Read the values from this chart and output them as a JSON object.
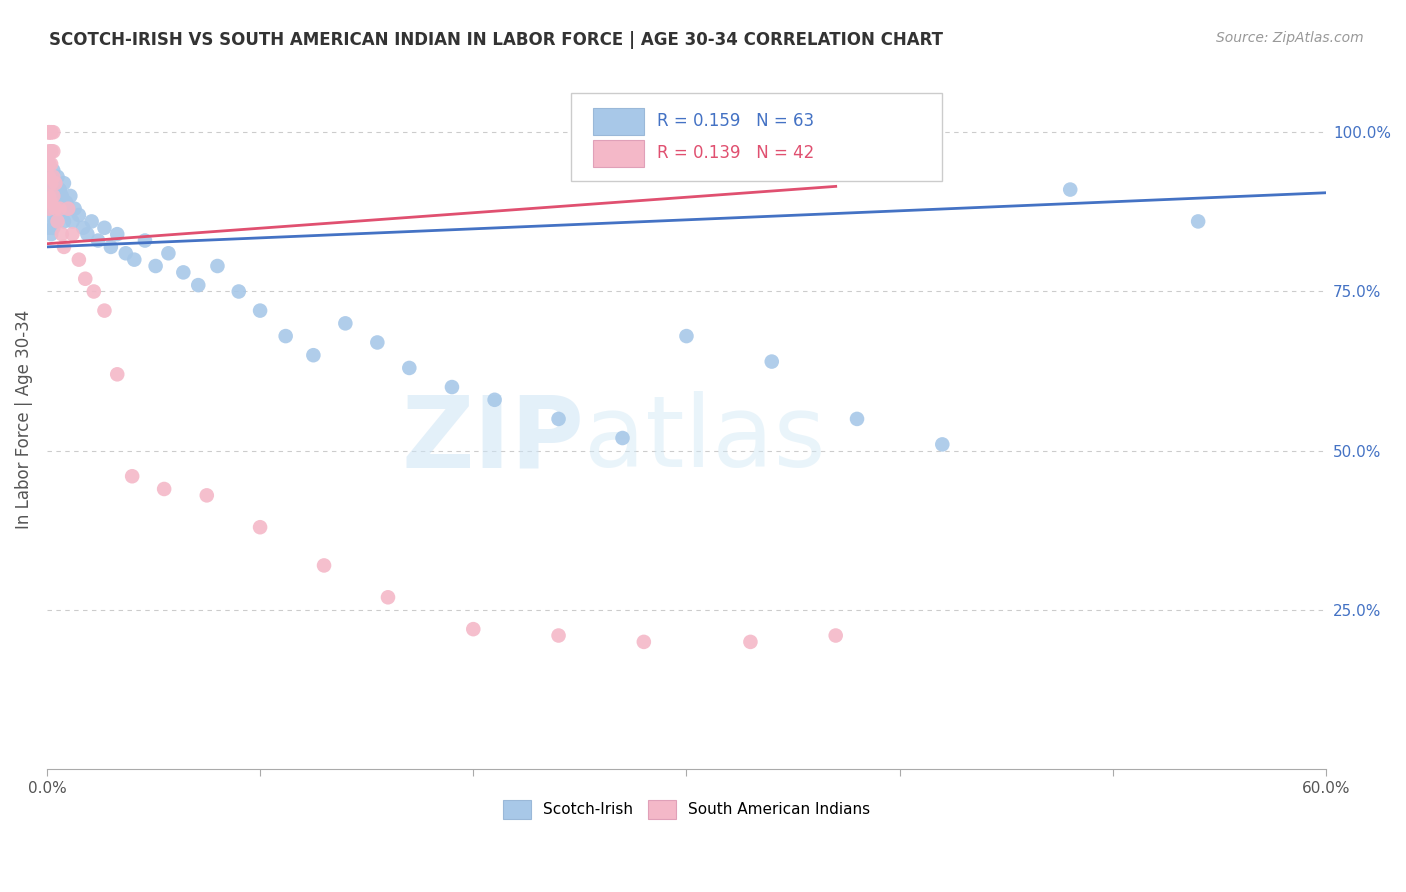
{
  "title": "SCOTCH-IRISH VS SOUTH AMERICAN INDIAN IN LABOR FORCE | AGE 30-34 CORRELATION CHART",
  "source": "Source: ZipAtlas.com",
  "ylabel": "In Labor Force | Age 30-34",
  "xlim": [
    0.0,
    0.6
  ],
  "ylim": [
    0.0,
    1.1
  ],
  "xticks": [
    0.0,
    0.1,
    0.2,
    0.3,
    0.4,
    0.5,
    0.6
  ],
  "xticklabels": [
    "0.0%",
    "",
    "",
    "",
    "",
    "",
    "60.0%"
  ],
  "yticks_right": [
    0.25,
    0.5,
    0.75,
    1.0
  ],
  "ytick_right_labels": [
    "25.0%",
    "50.0%",
    "75.0%",
    "100.0%"
  ],
  "legend_blue_label": "Scotch-Irish",
  "legend_pink_label": "South American Indians",
  "r_blue": 0.159,
  "n_blue": 63,
  "r_pink": 0.139,
  "n_pink": 42,
  "blue_color": "#a8c8e8",
  "pink_color": "#f4b8c8",
  "blue_line_color": "#4472c4",
  "pink_line_color": "#e05070",
  "watermark_zip": "ZIP",
  "watermark_atlas": "atlas",
  "blue_x": [
    0.001,
    0.001,
    0.001,
    0.001,
    0.002,
    0.002,
    0.002,
    0.002,
    0.002,
    0.003,
    0.003,
    0.003,
    0.003,
    0.004,
    0.004,
    0.004,
    0.005,
    0.005,
    0.005,
    0.006,
    0.006,
    0.007,
    0.007,
    0.008,
    0.008,
    0.009,
    0.01,
    0.011,
    0.012,
    0.013,
    0.015,
    0.017,
    0.019,
    0.021,
    0.024,
    0.027,
    0.03,
    0.033,
    0.037,
    0.041,
    0.046,
    0.051,
    0.057,
    0.064,
    0.071,
    0.08,
    0.09,
    0.1,
    0.112,
    0.125,
    0.14,
    0.155,
    0.17,
    0.19,
    0.21,
    0.24,
    0.27,
    0.3,
    0.34,
    0.38,
    0.42,
    0.48,
    0.54
  ],
  "blue_y": [
    0.95,
    0.92,
    0.88,
    0.85,
    0.97,
    0.93,
    0.9,
    0.87,
    0.84,
    0.94,
    0.91,
    0.88,
    0.85,
    0.92,
    0.89,
    0.86,
    0.93,
    0.9,
    0.87,
    0.91,
    0.88,
    0.9,
    0.87,
    0.92,
    0.86,
    0.89,
    0.88,
    0.9,
    0.86,
    0.88,
    0.87,
    0.85,
    0.84,
    0.86,
    0.83,
    0.85,
    0.82,
    0.84,
    0.81,
    0.8,
    0.83,
    0.79,
    0.81,
    0.78,
    0.76,
    0.79,
    0.75,
    0.72,
    0.68,
    0.65,
    0.7,
    0.67,
    0.63,
    0.6,
    0.58,
    0.55,
    0.52,
    0.68,
    0.64,
    0.55,
    0.51,
    0.91,
    0.86
  ],
  "pink_x": [
    0.001,
    0.001,
    0.001,
    0.001,
    0.001,
    0.001,
    0.001,
    0.001,
    0.002,
    0.002,
    0.002,
    0.002,
    0.002,
    0.002,
    0.003,
    0.003,
    0.003,
    0.003,
    0.004,
    0.004,
    0.005,
    0.006,
    0.007,
    0.008,
    0.01,
    0.012,
    0.015,
    0.018,
    0.022,
    0.027,
    0.033,
    0.04,
    0.055,
    0.075,
    0.1,
    0.13,
    0.16,
    0.2,
    0.24,
    0.28,
    0.33,
    0.37
  ],
  "pink_y": [
    1.0,
    1.0,
    1.0,
    0.97,
    0.95,
    0.93,
    0.9,
    0.88,
    1.0,
    1.0,
    0.97,
    0.95,
    0.92,
    0.89,
    1.0,
    0.97,
    0.93,
    0.9,
    0.92,
    0.88,
    0.86,
    0.88,
    0.84,
    0.82,
    0.88,
    0.84,
    0.8,
    0.77,
    0.75,
    0.72,
    0.62,
    0.46,
    0.44,
    0.43,
    0.38,
    0.32,
    0.27,
    0.22,
    0.21,
    0.2,
    0.2,
    0.21
  ]
}
